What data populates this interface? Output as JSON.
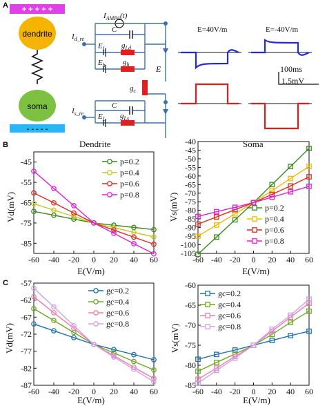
{
  "panelA": {
    "label": "A",
    "cell": {
      "top_plus": "+ + + + +",
      "dendrite": "dendrite",
      "soma": "soma",
      "bottom_minus": "- - - - -"
    },
    "circuit": {
      "iampa": "I",
      "iampa_sub": "AMPA",
      "iampa_arg": "(t)",
      "id_re": "I",
      "id_re_sub": "d_re",
      "is_re": "I",
      "is_re_sub": "s_re",
      "c_top": "C",
      "c_bot": "C",
      "el_top": "E",
      "el_top_sub": "L",
      "gld": "g",
      "gld_sub": "Ld",
      "eh": "E",
      "eh_sub": "h",
      "gh": "g",
      "gh_sub": "h",
      "gc": "g",
      "gc_sub": "c",
      "el_bot": "E",
      "el_bot_sub": "L",
      "gls": "g",
      "gls_sub": "Ls",
      "e_label": "E"
    },
    "traces": {
      "pos_label": "E=40V/m",
      "neg_label": "E=-40V/m",
      "scale_time": "100ms",
      "scale_volt": "1.5mV"
    },
    "colors": {
      "top_bar": "#e040e8",
      "bottom_bar": "#29b6f6",
      "dendrite": "#f4b400",
      "soma": "#7cc142",
      "wire": "#3a6fb8",
      "resistor": "#e02020",
      "dend_trace": "#1f2bd6",
      "soma_trace": "#e01c1c"
    }
  },
  "panelB": {
    "label": "B",
    "left": {
      "title": "Dendrite",
      "ylabel": "Vd(mV)",
      "xlabel": "E(V/m)"
    },
    "right": {
      "title": "Soma",
      "ylabel": "Vs(mV)",
      "xlabel": "E(V/m)"
    }
  },
  "panelC": {
    "label": "C",
    "left": {
      "ylabel": "Vd(mV)",
      "xlabel": "E(V/m)"
    },
    "right": {
      "ylabel": "Vs(mV)",
      "xlabel": "E(V/m)"
    }
  },
  "chart_data": [
    {
      "type": "line",
      "id": "B-dendrite",
      "title": "Dendrite",
      "xlabel": "E(V/m)",
      "ylabel": "Vd(mV)",
      "xlim": [
        -60,
        60
      ],
      "ylim": [
        -90,
        -40
      ],
      "xticks": [
        -60,
        -40,
        -20,
        0,
        20,
        40,
        60
      ],
      "yticks": [
        -45,
        -55,
        -65,
        -75,
        -85
      ],
      "marker": "circle",
      "legend": "top-right",
      "x": [
        -60,
        -40,
        -20,
        0,
        20,
        40,
        60
      ],
      "series": [
        {
          "name": "p=0.2",
          "color": "#3a8a1e",
          "values": [
            -69.3,
            -71.2,
            -73.1,
            -75,
            -76.1,
            -77.2,
            -78.3
          ]
        },
        {
          "name": "p=0.4",
          "color": "#c9c41c",
          "values": [
            -65.5,
            -68.7,
            -71.8,
            -75,
            -77.3,
            -79.6,
            -81.9
          ]
        },
        {
          "name": "p=0.6",
          "color": "#e0281c",
          "values": [
            -60.2,
            -65.1,
            -70.1,
            -75,
            -78.5,
            -82.0,
            -85.5
          ]
        },
        {
          "name": "p=0.8",
          "color": "#e020d8",
          "values": [
            -49.5,
            -58.0,
            -66.5,
            -75,
            -80.1,
            -85.2,
            -90.2
          ]
        }
      ]
    },
    {
      "type": "line",
      "id": "B-soma",
      "title": "Soma",
      "xlabel": "E(V/m)",
      "ylabel": "Vs(mV)",
      "xlim": [
        -60,
        60
      ],
      "ylim": [
        -105,
        -40
      ],
      "xticks": [
        -60,
        -40,
        -20,
        0,
        20,
        40,
        60
      ],
      "yticks": [
        -40,
        -45,
        -50,
        -55,
        -60,
        -65,
        -70,
        -75,
        -80,
        -85,
        -90,
        -95,
        -100,
        -105
      ],
      "marker": "square",
      "legend": "bottom-right",
      "x": [
        -60,
        -40,
        -20,
        0,
        20,
        40,
        60
      ],
      "series": [
        {
          "name": "p=0.2",
          "color": "#3a8a1e",
          "values": [
            -105.5,
            -95.5,
            -85.5,
            -75.5,
            -65.0,
            -54.5,
            -44.0
          ]
        },
        {
          "name": "p=0.4",
          "color": "#f5b800",
          "values": [
            -95.0,
            -88.5,
            -82.0,
            -75.5,
            -68.5,
            -61.5,
            -54.5
          ]
        },
        {
          "name": "p=0.6",
          "color": "#e0281c",
          "values": [
            -88.0,
            -83.8,
            -79.6,
            -75.5,
            -70.7,
            -65.8,
            -60.5
          ]
        },
        {
          "name": "p=0.8",
          "color": "#e020d8",
          "values": [
            -83.5,
            -80.8,
            -78.2,
            -75.5,
            -72.3,
            -69.2,
            -66.0
          ]
        }
      ]
    },
    {
      "type": "line",
      "id": "C-dendrite",
      "xlabel": "E(V/m)",
      "ylabel": "Vd(mV)",
      "xlim": [
        -60,
        60
      ],
      "ylim": [
        -87,
        -57
      ],
      "xticks": [
        -60,
        -40,
        -20,
        0,
        20,
        40,
        60
      ],
      "yticks": [
        -57,
        -62,
        -67,
        -72,
        -77,
        -82,
        -87
      ],
      "marker": "circle",
      "legend": "top-right",
      "x": [
        -60,
        -40,
        -20,
        0,
        20,
        40,
        60
      ],
      "series": [
        {
          "name": "gc=0.2",
          "color": "#1f6fb3",
          "values": [
            -69.0,
            -71.0,
            -73.0,
            -75.0,
            -76.5,
            -78.0,
            -79.5
          ]
        },
        {
          "name": "gc=0.4",
          "color": "#6aaa1e",
          "values": [
            -64.5,
            -68.0,
            -71.5,
            -75.0,
            -77.5,
            -80.0,
            -82.5
          ]
        },
        {
          "name": "gc=0.6",
          "color": "#f07aa8",
          "values": [
            -61.0,
            -65.7,
            -70.3,
            -75.0,
            -78.3,
            -81.7,
            -85.0
          ]
        },
        {
          "name": "gc=0.8",
          "color": "#d0a0e8",
          "values": [
            -58.5,
            -64.0,
            -69.5,
            -75.0,
            -78.7,
            -82.3,
            -86.0
          ]
        }
      ]
    },
    {
      "type": "line",
      "id": "C-soma",
      "xlabel": "E(V/m)",
      "ylabel": "Vs(mV)",
      "xlim": [
        -60,
        60
      ],
      "ylim": [
        -85,
        -60
      ],
      "xticks": [
        -60,
        -40,
        -20,
        0,
        20,
        40,
        60
      ],
      "yticks": [
        -60,
        -65,
        -70,
        -75,
        -80,
        -85
      ],
      "marker": "square",
      "legend": "top-left",
      "x": [
        -60,
        -40,
        -20,
        0,
        20,
        40,
        60
      ],
      "series": [
        {
          "name": "gc=0.2",
          "color": "#1f6fb3",
          "values": [
            -78.5,
            -77.3,
            -76.2,
            -75.0,
            -73.8,
            -72.6,
            -71.5
          ]
        },
        {
          "name": "gc=0.4",
          "color": "#6aaa1e",
          "values": [
            -81.5,
            -79.3,
            -77.2,
            -75.0,
            -72.3,
            -69.3,
            -66.5
          ]
        },
        {
          "name": "gc=0.6",
          "color": "#f07aa8",
          "values": [
            -83.5,
            -80.7,
            -77.8,
            -75.0,
            -71.5,
            -68.0,
            -64.5
          ]
        },
        {
          "name": "gc=0.8",
          "color": "#d0a0e8",
          "values": [
            -84.5,
            -81.3,
            -78.2,
            -75.0,
            -71.0,
            -67.5,
            -63.5
          ]
        }
      ]
    }
  ]
}
